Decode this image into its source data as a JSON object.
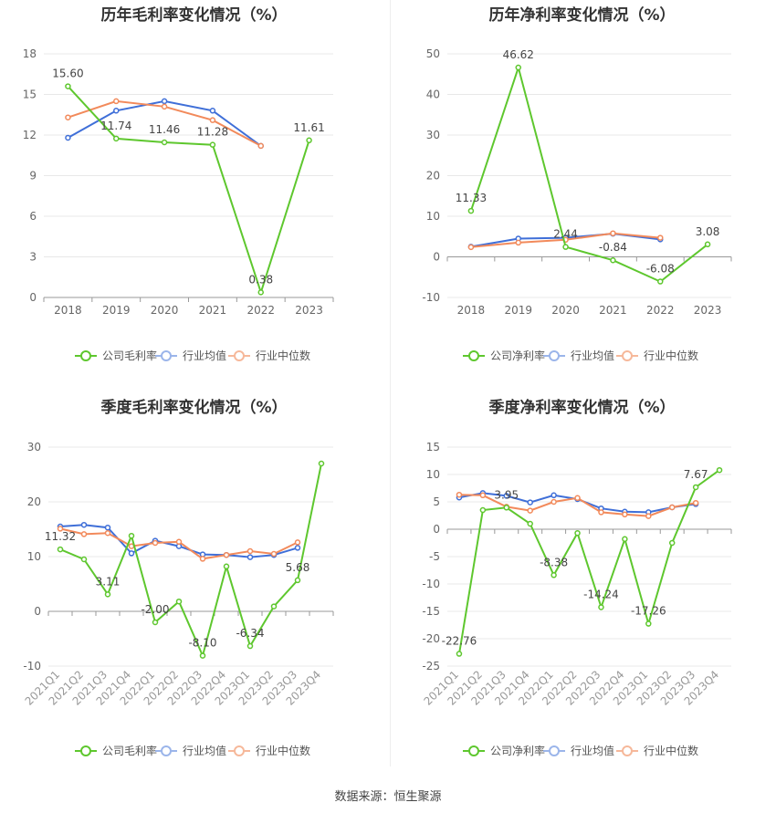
{
  "source": "数据来源：恒生聚源",
  "colors": {
    "company": "#5ec72e",
    "avg": "#3f6fd8",
    "median": "#f28a5b",
    "grid": "#e8e8e8",
    "axis": "#999999",
    "text": "#666666"
  },
  "chart_data": [
    {
      "type": "line",
      "title": "历年毛利率变化情况（%）",
      "categories": [
        "2018",
        "2019",
        "2020",
        "2021",
        "2022",
        "2023"
      ],
      "ylim": [
        0,
        18
      ],
      "yticks": [
        0,
        3,
        6,
        9,
        12,
        15,
        18
      ],
      "grid": true,
      "legend_position": "bottom",
      "series": [
        {
          "name": "公司毛利率",
          "values": [
            15.6,
            11.74,
            11.46,
            11.28,
            0.38,
            11.61
          ],
          "labels": [
            "15.60",
            "11.74",
            "11.46",
            "11.28",
            "0.38",
            "11.61"
          ]
        },
        {
          "name": "行业均值",
          "values": [
            11.8,
            13.8,
            14.5,
            13.8,
            11.2,
            null
          ]
        },
        {
          "name": "行业中位数",
          "values": [
            13.3,
            14.5,
            14.1,
            13.1,
            11.2,
            null
          ]
        }
      ]
    },
    {
      "type": "line",
      "title": "历年净利率变化情况（%）",
      "categories": [
        "2018",
        "2019",
        "2020",
        "2021",
        "2022",
        "2023"
      ],
      "ylim": [
        -10,
        50
      ],
      "yticks": [
        -10,
        0,
        10,
        20,
        30,
        40,
        50
      ],
      "grid": true,
      "legend_position": "bottom",
      "series": [
        {
          "name": "公司净利率",
          "values": [
            11.33,
            46.62,
            2.44,
            -0.84,
            -6.08,
            3.08
          ],
          "labels": [
            "11.33",
            "46.62",
            "2.44",
            "-0.84",
            "-6.08",
            "3.08"
          ]
        },
        {
          "name": "行业均值",
          "values": [
            2.5,
            4.5,
            4.7,
            5.7,
            4.3,
            null
          ]
        },
        {
          "name": "行业中位数",
          "values": [
            2.4,
            3.5,
            4.2,
            5.8,
            4.7,
            null
          ]
        }
      ]
    },
    {
      "type": "line",
      "title": "季度毛利率变化情况（%）",
      "categories": [
        "2021Q1",
        "2021Q2",
        "2021Q3",
        "2021Q4",
        "2022Q1",
        "2022Q2",
        "2022Q3",
        "2022Q4",
        "2023Q1",
        "2023Q2",
        "2023Q3",
        "2023Q4"
      ],
      "ylim": [
        -10,
        30
      ],
      "yticks": [
        -10,
        0,
        10,
        20,
        30
      ],
      "grid": true,
      "legend_position": "bottom",
      "series": [
        {
          "name": "公司毛利率",
          "values": [
            11.32,
            9.5,
            3.11,
            13.8,
            -2.0,
            1.8,
            -8.1,
            8.2,
            -6.34,
            0.9,
            5.68,
            27.0
          ],
          "labels": [
            "11.32",
            null,
            "3.11",
            null,
            "-2.00",
            null,
            "-8.10",
            null,
            "-6.34",
            null,
            "5.68",
            null
          ]
        },
        {
          "name": "行业均值",
          "values": [
            15.5,
            15.8,
            15.3,
            10.6,
            12.9,
            11.9,
            10.4,
            10.3,
            9.9,
            10.3,
            11.6,
            null
          ]
        },
        {
          "name": "行业中位数",
          "values": [
            15.1,
            14.1,
            14.3,
            11.9,
            12.5,
            12.7,
            9.6,
            10.3,
            11.0,
            10.5,
            12.6,
            null
          ]
        }
      ]
    },
    {
      "type": "line",
      "title": "季度净利率变化情况（%）",
      "categories": [
        "2021Q1",
        "2021Q2",
        "2021Q3",
        "2021Q4",
        "2022Q1",
        "2022Q2",
        "2022Q3",
        "2022Q4",
        "2023Q1",
        "2023Q2",
        "2023Q3",
        "2023Q4"
      ],
      "ylim": [
        -25,
        15
      ],
      "yticks": [
        -25,
        -20,
        -15,
        -10,
        -5,
        0,
        5,
        10,
        15
      ],
      "grid": true,
      "legend_position": "bottom",
      "series": [
        {
          "name": "公司净利率",
          "values": [
            -22.76,
            3.5,
            3.95,
            1.0,
            -8.38,
            -0.7,
            -14.24,
            -1.8,
            -17.26,
            -2.5,
            7.67,
            10.8
          ],
          "labels": [
            "-22.76",
            null,
            "3.95",
            null,
            "-8.38",
            null,
            "-14.24",
            null,
            "-17.26",
            null,
            "7.67",
            null
          ]
        },
        {
          "name": "行业均值",
          "values": [
            5.8,
            6.6,
            6.1,
            4.9,
            6.2,
            5.5,
            3.8,
            3.2,
            3.1,
            4.0,
            4.6,
            null
          ]
        },
        {
          "name": "行业中位数",
          "values": [
            6.3,
            6.2,
            4.1,
            3.4,
            5.0,
            5.7,
            3.1,
            2.7,
            2.4,
            4.0,
            4.8,
            null
          ]
        }
      ]
    }
  ]
}
